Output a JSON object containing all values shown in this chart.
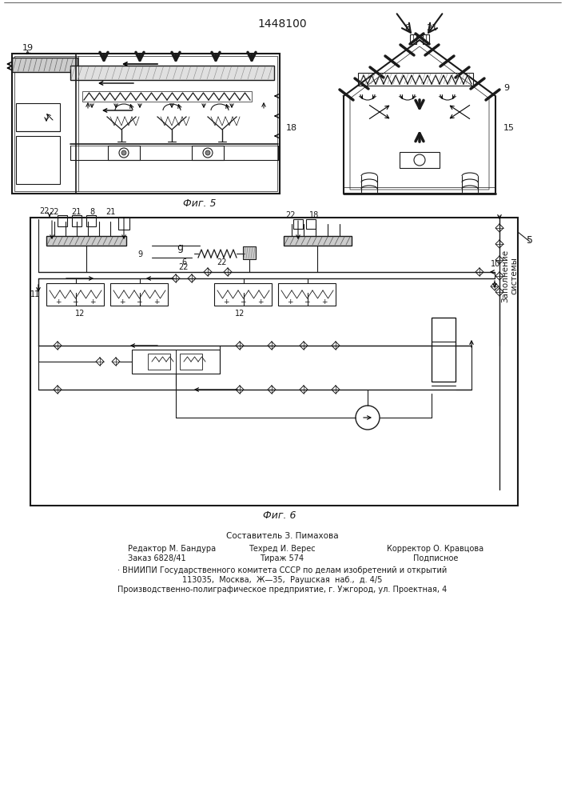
{
  "title": "1448100",
  "fig_width": 7.07,
  "fig_height": 10.0,
  "bg_color": "#ffffff",
  "fig5_label": "Фиг. 5",
  "fig6_label": "Фиг. 6",
  "footer_line1": "Составитель З. Пимахова",
  "footer_line2_left": "Редактор М. Бандура",
  "footer_line2_mid": "Техред И. Верес",
  "footer_line2_right": "Корректор О. Кравцова",
  "footer_line3_left": "Заказ 6828/41",
  "footer_line3_mid": "Тираж 574",
  "footer_line3_right": "Подписное",
  "footer_line4": "ВНИИПИ Государственного комитета СССР по делам изобретений и открытий",
  "footer_line5": "113035,  Москва,  Ж—35,  Раушская  наб.,  д. 4/5",
  "footer_line6": "Производственно-полиграфическое предприятие, г. Ужгород, ул. Проектная, 4",
  "lc": "#1a1a1a",
  "tc": "#1a1a1a"
}
